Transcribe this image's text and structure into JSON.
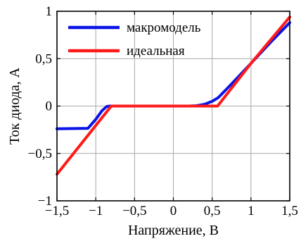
{
  "chart_data": {
    "type": "line",
    "xlabel": "Напряжение, В",
    "ylabel": "Ток диода, А",
    "xlim": [
      -1.5,
      1.5
    ],
    "ylim": [
      -1,
      1
    ],
    "grid": true,
    "legend_position": "top-left",
    "x_ticks": [
      {
        "value": -1.5,
        "label": "−1,5"
      },
      {
        "value": -1,
        "label": "−1"
      },
      {
        "value": -0.5,
        "label": "−0,5"
      },
      {
        "value": 0,
        "label": "0"
      },
      {
        "value": 0.5,
        "label": "0,5"
      },
      {
        "value": 1,
        "label": "1"
      },
      {
        "value": 1.5,
        "label": "1,5"
      }
    ],
    "y_ticks": [
      {
        "value": -1,
        "label": "−1"
      },
      {
        "value": -0.5,
        "label": "−0,5"
      },
      {
        "value": 0,
        "label": "0"
      },
      {
        "value": 0.5,
        "label": "0,5"
      },
      {
        "value": 1,
        "label": "1"
      }
    ],
    "series": [
      {
        "name": "макромодель",
        "color": "#0a14e6",
        "points": [
          [
            -1.5,
            -0.24
          ],
          [
            -1.1,
            -0.235
          ],
          [
            -1.0,
            -0.14
          ],
          [
            -0.92,
            -0.05
          ],
          [
            -0.86,
            -0.005
          ],
          [
            -0.82,
            0
          ],
          [
            -0.5,
            0
          ],
          [
            0,
            0
          ],
          [
            0.2,
            0
          ],
          [
            0.3,
            0.004
          ],
          [
            0.4,
            0.018
          ],
          [
            0.5,
            0.05
          ],
          [
            0.58,
            0.09
          ],
          [
            0.7,
            0.19
          ],
          [
            0.85,
            0.32
          ],
          [
            1.0,
            0.45
          ],
          [
            1.25,
            0.67
          ],
          [
            1.5,
            0.88
          ]
        ]
      },
      {
        "name": "идеальная",
        "color": "#ff1a1a",
        "points": [
          [
            -1.5,
            -0.72
          ],
          [
            -0.8,
            0
          ],
          [
            0.57,
            0
          ],
          [
            1.0,
            0.45
          ],
          [
            1.5,
            0.94
          ]
        ]
      }
    ]
  }
}
